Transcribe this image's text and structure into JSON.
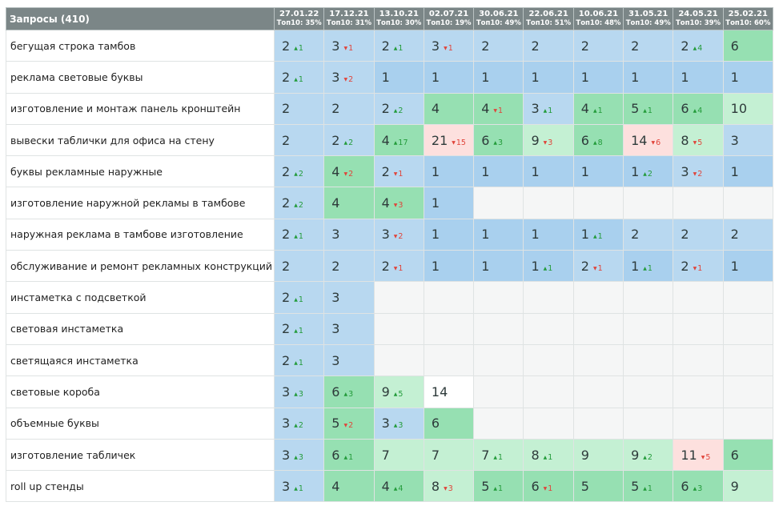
{
  "header": {
    "queries_label": "Запросы (410)",
    "columns": [
      {
        "date": "27.01.22",
        "top": "Топ10: 35%"
      },
      {
        "date": "17.12.21",
        "top": "Топ10: 31%"
      },
      {
        "date": "13.10.21",
        "top": "Топ10: 30%"
      },
      {
        "date": "02.07.21",
        "top": "Топ10: 19%"
      },
      {
        "date": "30.06.21",
        "top": "Топ10: 49%"
      },
      {
        "date": "22.06.21",
        "top": "Топ10: 51%"
      },
      {
        "date": "10.06.21",
        "top": "Топ10: 48%"
      },
      {
        "date": "31.05.21",
        "top": "Топ10: 49%"
      },
      {
        "date": "24.05.21",
        "top": "Топ10: 39%"
      },
      {
        "date": "25.02.21",
        "top": "Топ10: 60%"
      }
    ]
  },
  "rows": [
    {
      "query": "бегущая строка тамбов",
      "cells": [
        {
          "pos": "2",
          "ch": "1",
          "dir": "up",
          "bg": "bl"
        },
        {
          "pos": "3",
          "ch": "1",
          "dir": "down",
          "bg": "bl"
        },
        {
          "pos": "2",
          "ch": "1",
          "dir": "up",
          "bg": "bl"
        },
        {
          "pos": "3",
          "ch": "1",
          "dir": "down",
          "bg": "bl"
        },
        {
          "pos": "2",
          "ch": "",
          "dir": "",
          "bg": "bl"
        },
        {
          "pos": "2",
          "ch": "",
          "dir": "",
          "bg": "bl"
        },
        {
          "pos": "2",
          "ch": "",
          "dir": "",
          "bg": "bl"
        },
        {
          "pos": "2",
          "ch": "",
          "dir": "",
          "bg": "bl"
        },
        {
          "pos": "2",
          "ch": "4",
          "dir": "up",
          "bg": "bl"
        },
        {
          "pos": "6",
          "ch": "",
          "dir": "",
          "bg": "gr"
        }
      ]
    },
    {
      "query": "реклама световые буквы",
      "cells": [
        {
          "pos": "2",
          "ch": "1",
          "dir": "up",
          "bg": "bl"
        },
        {
          "pos": "3",
          "ch": "2",
          "dir": "down",
          "bg": "bl"
        },
        {
          "pos": "1",
          "ch": "",
          "dir": "",
          "bg": "bl2"
        },
        {
          "pos": "1",
          "ch": "",
          "dir": "",
          "bg": "bl2"
        },
        {
          "pos": "1",
          "ch": "",
          "dir": "",
          "bg": "bl2"
        },
        {
          "pos": "1",
          "ch": "",
          "dir": "",
          "bg": "bl2"
        },
        {
          "pos": "1",
          "ch": "",
          "dir": "",
          "bg": "bl2"
        },
        {
          "pos": "1",
          "ch": "",
          "dir": "",
          "bg": "bl2"
        },
        {
          "pos": "1",
          "ch": "",
          "dir": "",
          "bg": "bl2"
        },
        {
          "pos": "1",
          "ch": "",
          "dir": "",
          "bg": "bl2"
        }
      ]
    },
    {
      "query": "изготовление и монтаж панель кронштейн",
      "cells": [
        {
          "pos": "2",
          "ch": "",
          "dir": "",
          "bg": "bl"
        },
        {
          "pos": "2",
          "ch": "",
          "dir": "",
          "bg": "bl"
        },
        {
          "pos": "2",
          "ch": "2",
          "dir": "up",
          "bg": "bl"
        },
        {
          "pos": "4",
          "ch": "",
          "dir": "",
          "bg": "gr"
        },
        {
          "pos": "4",
          "ch": "1",
          "dir": "down",
          "bg": "gr"
        },
        {
          "pos": "3",
          "ch": "1",
          "dir": "up",
          "bg": "bl"
        },
        {
          "pos": "4",
          "ch": "1",
          "dir": "up",
          "bg": "gr"
        },
        {
          "pos": "5",
          "ch": "1",
          "dir": "up",
          "bg": "gr"
        },
        {
          "pos": "6",
          "ch": "4",
          "dir": "up",
          "bg": "gr"
        },
        {
          "pos": "10",
          "ch": "",
          "dir": "",
          "bg": "lg"
        }
      ]
    },
    {
      "query": "вывески таблички для офиса на стену",
      "cells": [
        {
          "pos": "2",
          "ch": "",
          "dir": "",
          "bg": "bl"
        },
        {
          "pos": "2",
          "ch": "2",
          "dir": "up",
          "bg": "bl"
        },
        {
          "pos": "4",
          "ch": "17",
          "dir": "up",
          "bg": "gr"
        },
        {
          "pos": "21",
          "ch": "15",
          "dir": "down",
          "bg": "pk"
        },
        {
          "pos": "6",
          "ch": "3",
          "dir": "up",
          "bg": "gr"
        },
        {
          "pos": "9",
          "ch": "3",
          "dir": "down",
          "bg": "lg"
        },
        {
          "pos": "6",
          "ch": "8",
          "dir": "up",
          "bg": "gr"
        },
        {
          "pos": "14",
          "ch": "6",
          "dir": "down",
          "bg": "pk"
        },
        {
          "pos": "8",
          "ch": "5",
          "dir": "down",
          "bg": "lg"
        },
        {
          "pos": "3",
          "ch": "",
          "dir": "",
          "bg": "bl"
        }
      ]
    },
    {
      "query": "буквы рекламные наружные",
      "cells": [
        {
          "pos": "2",
          "ch": "2",
          "dir": "up",
          "bg": "bl"
        },
        {
          "pos": "4",
          "ch": "2",
          "dir": "down",
          "bg": "gr"
        },
        {
          "pos": "2",
          "ch": "1",
          "dir": "down",
          "bg": "bl"
        },
        {
          "pos": "1",
          "ch": "",
          "dir": "",
          "bg": "bl2"
        },
        {
          "pos": "1",
          "ch": "",
          "dir": "",
          "bg": "bl2"
        },
        {
          "pos": "1",
          "ch": "",
          "dir": "",
          "bg": "bl2"
        },
        {
          "pos": "1",
          "ch": "",
          "dir": "",
          "bg": "bl2"
        },
        {
          "pos": "1",
          "ch": "2",
          "dir": "up",
          "bg": "bl2"
        },
        {
          "pos": "3",
          "ch": "2",
          "dir": "down",
          "bg": "bl"
        },
        {
          "pos": "1",
          "ch": "",
          "dir": "",
          "bg": "bl2"
        }
      ]
    },
    {
      "query": "изготовление наружной рекламы в тамбове",
      "cells": [
        {
          "pos": "2",
          "ch": "2",
          "dir": "up",
          "bg": "bl"
        },
        {
          "pos": "4",
          "ch": "",
          "dir": "",
          "bg": "gr"
        },
        {
          "pos": "4",
          "ch": "3",
          "dir": "down",
          "bg": "gr"
        },
        {
          "pos": "1",
          "ch": "",
          "dir": "",
          "bg": "bl2"
        },
        {
          "pos": "",
          "ch": "",
          "dir": "",
          "bg": "em"
        },
        {
          "pos": "",
          "ch": "",
          "dir": "",
          "bg": "em"
        },
        {
          "pos": "",
          "ch": "",
          "dir": "",
          "bg": "em"
        },
        {
          "pos": "",
          "ch": "",
          "dir": "",
          "bg": "em"
        },
        {
          "pos": "",
          "ch": "",
          "dir": "",
          "bg": "em"
        },
        {
          "pos": "",
          "ch": "",
          "dir": "",
          "bg": "em"
        }
      ]
    },
    {
      "query": "наружная реклама в тамбове изготовление",
      "cells": [
        {
          "pos": "2",
          "ch": "1",
          "dir": "up",
          "bg": "bl"
        },
        {
          "pos": "3",
          "ch": "",
          "dir": "",
          "bg": "bl"
        },
        {
          "pos": "3",
          "ch": "2",
          "dir": "down",
          "bg": "bl"
        },
        {
          "pos": "1",
          "ch": "",
          "dir": "",
          "bg": "bl2"
        },
        {
          "pos": "1",
          "ch": "",
          "dir": "",
          "bg": "bl2"
        },
        {
          "pos": "1",
          "ch": "",
          "dir": "",
          "bg": "bl2"
        },
        {
          "pos": "1",
          "ch": "1",
          "dir": "up",
          "bg": "bl2"
        },
        {
          "pos": "2",
          "ch": "",
          "dir": "",
          "bg": "bl"
        },
        {
          "pos": "2",
          "ch": "",
          "dir": "",
          "bg": "bl"
        },
        {
          "pos": "2",
          "ch": "",
          "dir": "",
          "bg": "bl"
        }
      ]
    },
    {
      "query": "обслуживание и ремонт рекламных конструкций",
      "cells": [
        {
          "pos": "2",
          "ch": "",
          "dir": "",
          "bg": "bl"
        },
        {
          "pos": "2",
          "ch": "",
          "dir": "",
          "bg": "bl"
        },
        {
          "pos": "2",
          "ch": "1",
          "dir": "down",
          "bg": "bl"
        },
        {
          "pos": "1",
          "ch": "",
          "dir": "",
          "bg": "bl2"
        },
        {
          "pos": "1",
          "ch": "",
          "dir": "",
          "bg": "bl2"
        },
        {
          "pos": "1",
          "ch": "1",
          "dir": "up",
          "bg": "bl2"
        },
        {
          "pos": "2",
          "ch": "1",
          "dir": "down",
          "bg": "bl"
        },
        {
          "pos": "1",
          "ch": "1",
          "dir": "up",
          "bg": "bl2"
        },
        {
          "pos": "2",
          "ch": "1",
          "dir": "down",
          "bg": "bl"
        },
        {
          "pos": "1",
          "ch": "",
          "dir": "",
          "bg": "bl2"
        }
      ]
    },
    {
      "query": "инстаметка с подсветкой",
      "cells": [
        {
          "pos": "2",
          "ch": "1",
          "dir": "up",
          "bg": "bl"
        },
        {
          "pos": "3",
          "ch": "",
          "dir": "",
          "bg": "bl"
        },
        {
          "pos": "",
          "ch": "",
          "dir": "",
          "bg": "em"
        },
        {
          "pos": "",
          "ch": "",
          "dir": "",
          "bg": "em"
        },
        {
          "pos": "",
          "ch": "",
          "dir": "",
          "bg": "em"
        },
        {
          "pos": "",
          "ch": "",
          "dir": "",
          "bg": "em"
        },
        {
          "pos": "",
          "ch": "",
          "dir": "",
          "bg": "em"
        },
        {
          "pos": "",
          "ch": "",
          "dir": "",
          "bg": "em"
        },
        {
          "pos": "",
          "ch": "",
          "dir": "",
          "bg": "em"
        },
        {
          "pos": "",
          "ch": "",
          "dir": "",
          "bg": "em"
        }
      ]
    },
    {
      "query": "световая инстаметка",
      "cells": [
        {
          "pos": "2",
          "ch": "1",
          "dir": "up",
          "bg": "bl"
        },
        {
          "pos": "3",
          "ch": "",
          "dir": "",
          "bg": "bl"
        },
        {
          "pos": "",
          "ch": "",
          "dir": "",
          "bg": "em"
        },
        {
          "pos": "",
          "ch": "",
          "dir": "",
          "bg": "em"
        },
        {
          "pos": "",
          "ch": "",
          "dir": "",
          "bg": "em"
        },
        {
          "pos": "",
          "ch": "",
          "dir": "",
          "bg": "em"
        },
        {
          "pos": "",
          "ch": "",
          "dir": "",
          "bg": "em"
        },
        {
          "pos": "",
          "ch": "",
          "dir": "",
          "bg": "em"
        },
        {
          "pos": "",
          "ch": "",
          "dir": "",
          "bg": "em"
        },
        {
          "pos": "",
          "ch": "",
          "dir": "",
          "bg": "em"
        }
      ]
    },
    {
      "query": "светящаяся инстаметка",
      "cells": [
        {
          "pos": "2",
          "ch": "1",
          "dir": "up",
          "bg": "bl"
        },
        {
          "pos": "3",
          "ch": "",
          "dir": "",
          "bg": "bl"
        },
        {
          "pos": "",
          "ch": "",
          "dir": "",
          "bg": "em"
        },
        {
          "pos": "",
          "ch": "",
          "dir": "",
          "bg": "em"
        },
        {
          "pos": "",
          "ch": "",
          "dir": "",
          "bg": "em"
        },
        {
          "pos": "",
          "ch": "",
          "dir": "",
          "bg": "em"
        },
        {
          "pos": "",
          "ch": "",
          "dir": "",
          "bg": "em"
        },
        {
          "pos": "",
          "ch": "",
          "dir": "",
          "bg": "em"
        },
        {
          "pos": "",
          "ch": "",
          "dir": "",
          "bg": "em"
        },
        {
          "pos": "",
          "ch": "",
          "dir": "",
          "bg": "em"
        }
      ]
    },
    {
      "query": "световые короба",
      "cells": [
        {
          "pos": "3",
          "ch": "3",
          "dir": "up",
          "bg": "bl"
        },
        {
          "pos": "6",
          "ch": "3",
          "dir": "up",
          "bg": "gr"
        },
        {
          "pos": "9",
          "ch": "5",
          "dir": "up",
          "bg": "lg"
        },
        {
          "pos": "14",
          "ch": "",
          "dir": "",
          "bg": "wh"
        },
        {
          "pos": "",
          "ch": "",
          "dir": "",
          "bg": "em"
        },
        {
          "pos": "",
          "ch": "",
          "dir": "",
          "bg": "em"
        },
        {
          "pos": "",
          "ch": "",
          "dir": "",
          "bg": "em"
        },
        {
          "pos": "",
          "ch": "",
          "dir": "",
          "bg": "em"
        },
        {
          "pos": "",
          "ch": "",
          "dir": "",
          "bg": "em"
        },
        {
          "pos": "",
          "ch": "",
          "dir": "",
          "bg": "em"
        }
      ]
    },
    {
      "query": "объемные буквы",
      "cells": [
        {
          "pos": "3",
          "ch": "2",
          "dir": "up",
          "bg": "bl"
        },
        {
          "pos": "5",
          "ch": "2",
          "dir": "down",
          "bg": "gr"
        },
        {
          "pos": "3",
          "ch": "3",
          "dir": "up",
          "bg": "bl"
        },
        {
          "pos": "6",
          "ch": "",
          "dir": "",
          "bg": "gr"
        },
        {
          "pos": "",
          "ch": "",
          "dir": "",
          "bg": "em"
        },
        {
          "pos": "",
          "ch": "",
          "dir": "",
          "bg": "em"
        },
        {
          "pos": "",
          "ch": "",
          "dir": "",
          "bg": "em"
        },
        {
          "pos": "",
          "ch": "",
          "dir": "",
          "bg": "em"
        },
        {
          "pos": "",
          "ch": "",
          "dir": "",
          "bg": "em"
        },
        {
          "pos": "",
          "ch": "",
          "dir": "",
          "bg": "em"
        }
      ]
    },
    {
      "query": "изготовление табличек",
      "cells": [
        {
          "pos": "3",
          "ch": "3",
          "dir": "up",
          "bg": "bl"
        },
        {
          "pos": "6",
          "ch": "1",
          "dir": "up",
          "bg": "gr"
        },
        {
          "pos": "7",
          "ch": "",
          "dir": "",
          "bg": "lg"
        },
        {
          "pos": "7",
          "ch": "",
          "dir": "",
          "bg": "lg"
        },
        {
          "pos": "7",
          "ch": "1",
          "dir": "up",
          "bg": "lg"
        },
        {
          "pos": "8",
          "ch": "1",
          "dir": "up",
          "bg": "lg"
        },
        {
          "pos": "9",
          "ch": "",
          "dir": "",
          "bg": "lg"
        },
        {
          "pos": "9",
          "ch": "2",
          "dir": "up",
          "bg": "lg"
        },
        {
          "pos": "11",
          "ch": "5",
          "dir": "down",
          "bg": "pk"
        },
        {
          "pos": "6",
          "ch": "",
          "dir": "",
          "bg": "gr"
        }
      ]
    },
    {
      "query": "roll up стенды",
      "cells": [
        {
          "pos": "3",
          "ch": "1",
          "dir": "up",
          "bg": "bl"
        },
        {
          "pos": "4",
          "ch": "",
          "dir": "",
          "bg": "gr"
        },
        {
          "pos": "4",
          "ch": "4",
          "dir": "up",
          "bg": "gr"
        },
        {
          "pos": "8",
          "ch": "3",
          "dir": "down",
          "bg": "lg"
        },
        {
          "pos": "5",
          "ch": "1",
          "dir": "up",
          "bg": "gr"
        },
        {
          "pos": "6",
          "ch": "1",
          "dir": "down",
          "bg": "gr"
        },
        {
          "pos": "5",
          "ch": "",
          "dir": "",
          "bg": "gr"
        },
        {
          "pos": "5",
          "ch": "1",
          "dir": "up",
          "bg": "gr"
        },
        {
          "pos": "6",
          "ch": "3",
          "dir": "up",
          "bg": "gr"
        },
        {
          "pos": "9",
          "ch": "",
          "dir": "",
          "bg": "lg"
        }
      ]
    }
  ]
}
